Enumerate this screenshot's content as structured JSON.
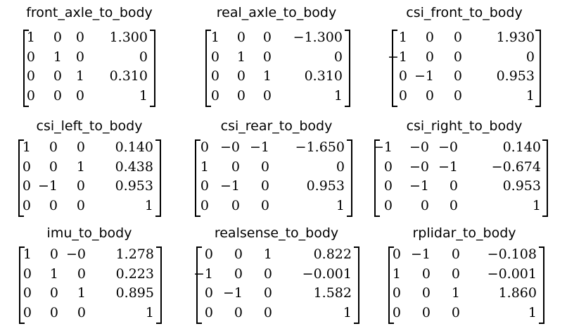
{
  "matrices": [
    {
      "name": "front_axle_to_body",
      "rows": [
        [
          "1",
          "0",
          "0",
          "1.300"
        ],
        [
          "0",
          "1",
          "0",
          "0"
        ],
        [
          "0",
          "0",
          "1",
          "0.310"
        ],
        [
          "0",
          "0",
          "0",
          "1"
        ]
      ]
    },
    {
      "name": "real_axle_to_body",
      "rows": [
        [
          "1",
          "0",
          "0",
          "−1.300"
        ],
        [
          "0",
          "1",
          "0",
          "0"
        ],
        [
          "0",
          "0",
          "1",
          "0.310"
        ],
        [
          "0",
          "0",
          "0",
          "1"
        ]
      ]
    },
    {
      "name": "csi_front_to_body",
      "rows": [
        [
          "1",
          "0",
          "0",
          "1.930"
        ],
        [
          "−1",
          "0",
          "0",
          "0"
        ],
        [
          "0",
          "−1",
          "0",
          "0.953"
        ],
        [
          "0",
          "0",
          "0",
          "1"
        ]
      ]
    },
    {
      "name": "csi_left_to_body",
      "rows": [
        [
          "1",
          "0",
          "0",
          "0.140"
        ],
        [
          "0",
          "0",
          "1",
          "0.438"
        ],
        [
          "0",
          "−1",
          "0",
          "0.953"
        ],
        [
          "0",
          "0",
          "0",
          "1"
        ]
      ]
    },
    {
      "name": "csi_rear_to_body",
      "rows": [
        [
          "0",
          "−0",
          "−1",
          "−1.650"
        ],
        [
          "1",
          "0",
          "0",
          "0"
        ],
        [
          "0",
          "−1",
          "0",
          "0.953"
        ],
        [
          "0",
          "0",
          "0",
          "1"
        ]
      ]
    },
    {
      "name": "csi_right_to_body",
      "rows": [
        [
          "−1",
          "−0",
          "−0",
          "0.140"
        ],
        [
          "0",
          "−0",
          "−1",
          "−0.674"
        ],
        [
          "0",
          "−1",
          "0",
          "0.953"
        ],
        [
          "0",
          "0",
          "0",
          "1"
        ]
      ]
    },
    {
      "name": "imu_to_body",
      "rows": [
        [
          "1",
          "0",
          "−0",
          "1.278"
        ],
        [
          "0",
          "1",
          "0",
          "0.223"
        ],
        [
          "0",
          "0",
          "1",
          "0.895"
        ],
        [
          "0",
          "0",
          "0",
          "1"
        ]
      ]
    },
    {
      "name": "realsense_to_body",
      "rows": [
        [
          "0",
          "0",
          "1",
          "0.822"
        ],
        [
          "−1",
          "0",
          "0",
          "−0.001"
        ],
        [
          "0",
          "−1",
          "0",
          "1.582"
        ],
        [
          "0",
          "0",
          "0",
          "1"
        ]
      ]
    },
    {
      "name": "rplidar_to_body",
      "rows": [
        [
          "0",
          "−1",
          "0",
          "−0.108"
        ],
        [
          "1",
          "0",
          "0",
          "−0.001"
        ],
        [
          "0",
          "0",
          "1",
          "1.860"
        ],
        [
          "0",
          "0",
          "0",
          "1"
        ]
      ]
    }
  ]
}
